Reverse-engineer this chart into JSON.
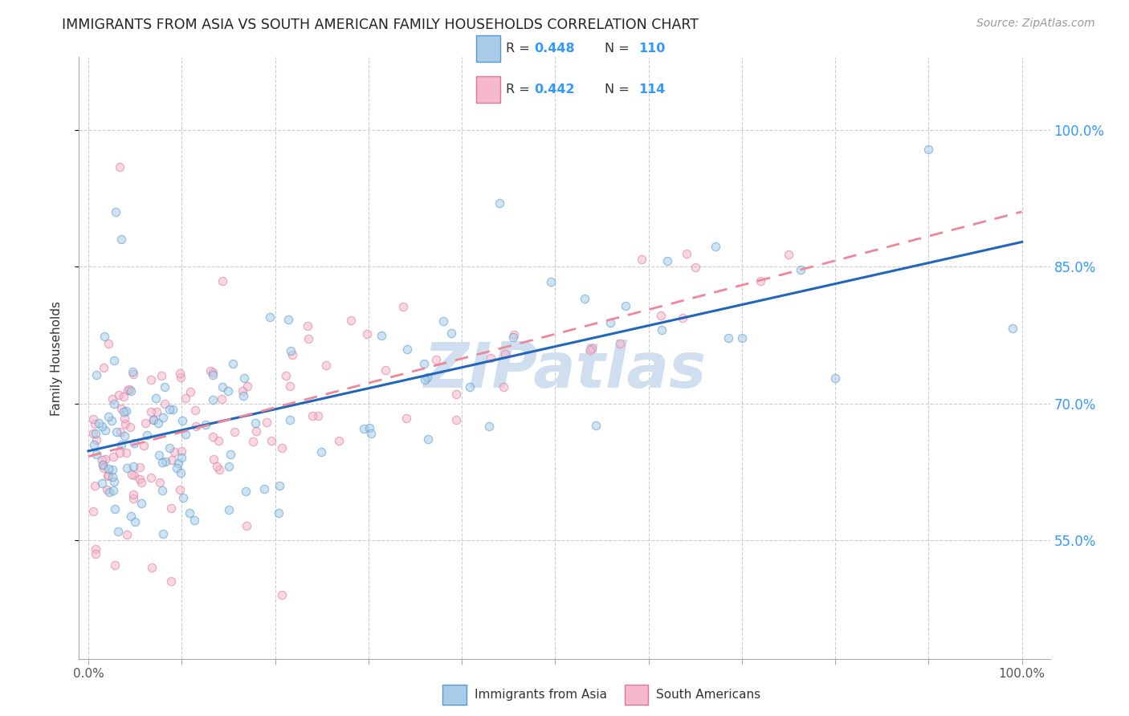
{
  "title": "IMMIGRANTS FROM ASIA VS SOUTH AMERICAN FAMILY HOUSEHOLDS CORRELATION CHART",
  "source": "Source: ZipAtlas.com",
  "ylabel": "Family Households",
  "ytick_labels": [
    "55.0%",
    "70.0%",
    "85.0%",
    "100.0%"
  ],
  "ytick_values": [
    0.55,
    0.7,
    0.85,
    1.0
  ],
  "xtick_labels": [
    "0.0%",
    "",
    "",
    "",
    "",
    "",
    "",
    "",
    "",
    "",
    "100.0%"
  ],
  "xtick_values": [
    0.0,
    0.1,
    0.2,
    0.3,
    0.4,
    0.5,
    0.6,
    0.7,
    0.8,
    0.9,
    1.0
  ],
  "xlim": [
    -0.01,
    1.03
  ],
  "ylim": [
    0.42,
    1.08
  ],
  "legend_r1": "R = 0.448",
  "legend_n1": "N = 110",
  "legend_r2": "R = 0.442",
  "legend_n2": "N = 114",
  "color_asia_fill": "#a8cce8",
  "color_asia_edge": "#5599cc",
  "color_south_fill": "#f5b8cc",
  "color_south_edge": "#dd7799",
  "line_color_asia": "#2266bb",
  "line_color_south": "#ee8899",
  "watermark_color": "#d0dff0",
  "title_fontsize": 12.5,
  "source_fontsize": 10,
  "label_fontsize": 11,
  "tick_fontsize": 11,
  "scatter_size": 55,
  "scatter_alpha": 0.55,
  "legend_label_asia": "Immigrants from Asia",
  "legend_label_south": "South Americans"
}
